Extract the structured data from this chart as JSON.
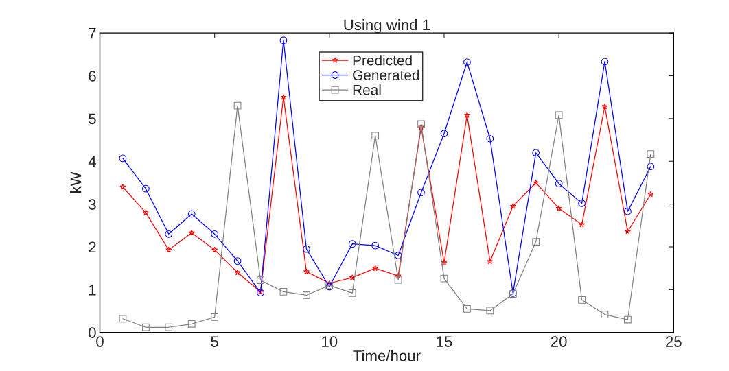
{
  "chart_data": {
    "type": "line",
    "title": "Using wind 1",
    "xlabel": "Time/hour",
    "ylabel": "kW",
    "x": [
      1,
      2,
      3,
      4,
      5,
      6,
      7,
      8,
      9,
      10,
      11,
      12,
      13,
      14,
      15,
      16,
      17,
      18,
      19,
      20,
      21,
      22,
      23,
      24
    ],
    "xlim": [
      0,
      25
    ],
    "xticks": [
      0,
      5,
      10,
      15,
      20,
      25
    ],
    "ylim": [
      0,
      7
    ],
    "yticks": [
      0,
      1,
      2,
      3,
      4,
      5,
      6,
      7
    ],
    "grid": false,
    "legend": "top",
    "line_style": "solid",
    "series": [
      {
        "name": "Predicted",
        "color": "#ff0000",
        "marker": "star",
        "values": [
          3.4,
          2.8,
          1.93,
          2.33,
          1.93,
          1.4,
          0.95,
          5.5,
          1.42,
          1.15,
          1.28,
          1.5,
          1.32,
          4.8,
          1.63,
          5.08,
          1.66,
          2.95,
          3.5,
          2.9,
          2.52,
          5.28,
          2.36,
          3.23
        ]
      },
      {
        "name": "Generated",
        "color": "#0000ff",
        "marker": "circle",
        "values": [
          4.07,
          3.36,
          2.3,
          2.77,
          2.3,
          1.67,
          0.93,
          6.83,
          1.95,
          1.07,
          2.07,
          2.03,
          1.8,
          3.27,
          4.65,
          6.32,
          4.53,
          0.92,
          4.2,
          3.48,
          3.02,
          6.33,
          2.83,
          3.88
        ]
      },
      {
        "name": "Real",
        "color": "#808080",
        "marker": "square",
        "values": [
          0.32,
          0.12,
          0.12,
          0.2,
          0.36,
          5.3,
          1.22,
          0.95,
          0.87,
          1.1,
          0.92,
          4.6,
          1.23,
          4.87,
          1.26,
          0.55,
          0.51,
          0.9,
          2.12,
          5.08,
          0.76,
          0.42,
          0.3,
          4.17
        ]
      }
    ]
  }
}
